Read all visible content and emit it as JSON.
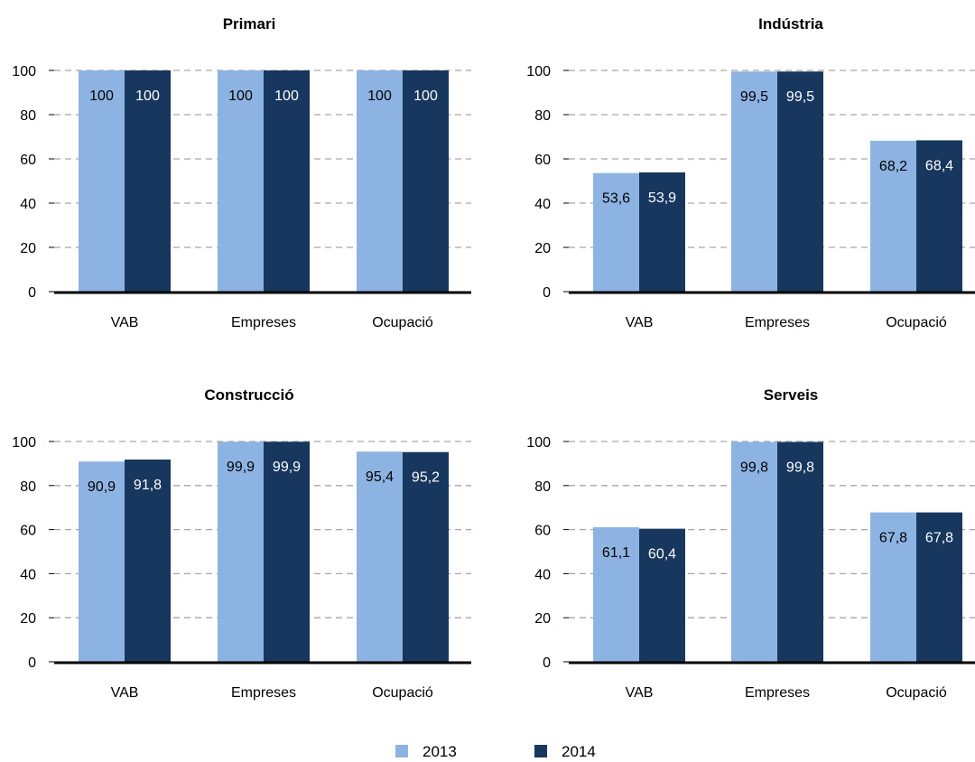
{
  "colors": {
    "series_2013": "#8db3e2",
    "series_2014": "#17375e",
    "grid": "#a6a6a6",
    "axis": "#000000",
    "label_on_dark": "#ffffff",
    "label_on_light": "#000000"
  },
  "legend": {
    "position": "bottom-center",
    "items": [
      {
        "label": "2013",
        "color": "#8db3e2"
      },
      {
        "label": "2014",
        "color": "#17375e"
      }
    ]
  },
  "chart_data": [
    {
      "type": "bar",
      "title": "Primari",
      "categories": [
        "VAB",
        "Empreses",
        "Ocupació"
      ],
      "series": [
        {
          "name": "2013",
          "values": [
            100,
            100,
            100
          ],
          "labels": [
            "100",
            "100",
            "100"
          ]
        },
        {
          "name": "2014",
          "values": [
            100,
            100,
            100
          ],
          "labels": [
            "100",
            "100",
            "100"
          ]
        }
      ],
      "ylim": [
        0,
        100
      ],
      "yticks": [
        "0",
        "20",
        "40",
        "60",
        "80",
        "100"
      ],
      "grid": true
    },
    {
      "type": "bar",
      "title": "Indústria",
      "categories": [
        "VAB",
        "Empreses",
        "Ocupació"
      ],
      "series": [
        {
          "name": "2013",
          "values": [
            53.6,
            99.5,
            68.2
          ],
          "labels": [
            "53,6",
            "99,5",
            "68,2"
          ]
        },
        {
          "name": "2014",
          "values": [
            53.9,
            99.5,
            68.4
          ],
          "labels": [
            "53,9",
            "99,5",
            "68,4"
          ]
        }
      ],
      "ylim": [
        0,
        100
      ],
      "yticks": [
        "0",
        "20",
        "40",
        "60",
        "80",
        "100"
      ],
      "grid": true
    },
    {
      "type": "bar",
      "title": "Construcció",
      "categories": [
        "VAB",
        "Empreses",
        "Ocupació"
      ],
      "series": [
        {
          "name": "2013",
          "values": [
            90.9,
            99.9,
            95.4
          ],
          "labels": [
            "90,9",
            "99,9",
            "95,4"
          ]
        },
        {
          "name": "2014",
          "values": [
            91.8,
            99.9,
            95.2
          ],
          "labels": [
            "91,8",
            "99,9",
            "95,2"
          ]
        }
      ],
      "ylim": [
        0,
        100
      ],
      "yticks": [
        "0",
        "20",
        "40",
        "60",
        "80",
        "100"
      ],
      "grid": true
    },
    {
      "type": "bar",
      "title": "Serveis",
      "categories": [
        "VAB",
        "Empreses",
        "Ocupació"
      ],
      "series": [
        {
          "name": "2013",
          "values": [
            61.1,
            99.8,
            67.8
          ],
          "labels": [
            "61,1",
            "99,8",
            "67,8"
          ]
        },
        {
          "name": "2014",
          "values": [
            60.4,
            99.8,
            67.8
          ],
          "labels": [
            "60,4",
            "99,8",
            "67,8"
          ]
        }
      ],
      "ylim": [
        0,
        100
      ],
      "yticks": [
        "0",
        "20",
        "40",
        "60",
        "80",
        "100"
      ],
      "grid": true
    }
  ]
}
